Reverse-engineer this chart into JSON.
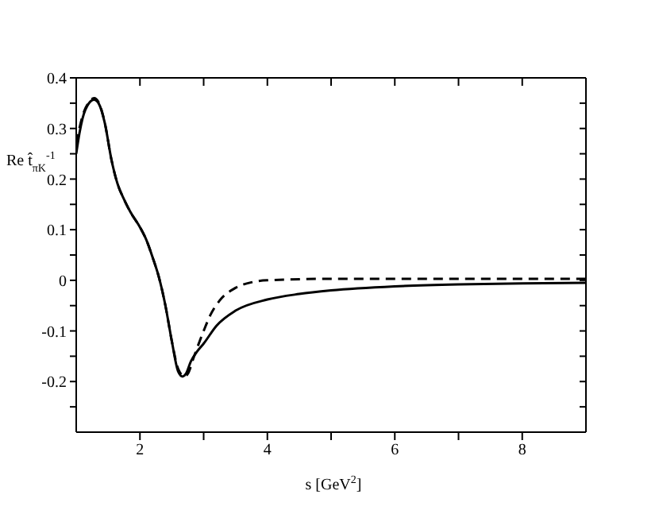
{
  "chart_data": {
    "type": "line",
    "xlabel": "s [GeV$^{2}$]",
    "ylabel": "Re t̂$_{πK}$$^{-1}$",
    "xlim": [
      1,
      9
    ],
    "ylim": [
      -0.3,
      0.4
    ],
    "xticks": [
      2,
      {
        "value": 3,
        "label": null
      },
      4,
      {
        "value": 5,
        "label": null
      },
      6,
      {
        "value": 7,
        "label": null
      },
      8
    ],
    "yticks": [
      {
        "value": -0.25,
        "label": null
      },
      -0.2,
      {
        "value": -0.15,
        "label": null
      },
      -0.1,
      {
        "value": -0.05,
        "label": null
      },
      0,
      {
        "value": 0.05,
        "label": null
      },
      0.1,
      {
        "value": 0.15,
        "label": null
      },
      0.2,
      {
        "value": 0.25,
        "label": null
      },
      0.3,
      {
        "value": 0.35,
        "label": null
      },
      0.4
    ],
    "legend": false,
    "marker": "none",
    "series": [
      {
        "color": "#000000",
        "line_style": "solid",
        "x": [
          1.0,
          1.05,
          1.1,
          1.2,
          1.28,
          1.35,
          1.45,
          1.55,
          1.65,
          1.75,
          1.85,
          2.0,
          2.1,
          2.2,
          2.3,
          2.4,
          2.5,
          2.6,
          2.67,
          2.72,
          2.8,
          2.9,
          3.0,
          3.2,
          3.5,
          4.0,
          4.5,
          5,
          6,
          7,
          8,
          9
        ],
        "values": [
          0.25,
          0.29,
          0.32,
          0.35,
          0.357,
          0.35,
          0.31,
          0.24,
          0.19,
          0.16,
          0.135,
          0.105,
          0.08,
          0.045,
          0.005,
          -0.05,
          -0.12,
          -0.18,
          -0.19,
          -0.185,
          -0.16,
          -0.14,
          -0.125,
          -0.09,
          -0.06,
          -0.038,
          -0.027,
          -0.02,
          -0.012,
          -0.008,
          -0.006,
          -0.005
        ]
      },
      {
        "color": "#000000",
        "line_style": "dashed",
        "x": [
          1.0,
          1.05,
          1.1,
          1.2,
          1.28,
          1.35,
          1.45,
          1.55,
          1.65,
          1.75,
          1.85,
          2.0,
          2.1,
          2.2,
          2.3,
          2.4,
          2.5,
          2.6,
          2.7,
          2.75,
          2.85,
          3.0,
          3.1,
          3.25,
          3.5,
          3.75,
          4,
          5,
          6,
          9
        ],
        "values": [
          0.27,
          0.3,
          0.325,
          0.352,
          0.36,
          0.352,
          0.31,
          0.24,
          0.19,
          0.16,
          0.135,
          0.105,
          0.08,
          0.045,
          0.005,
          -0.05,
          -0.12,
          -0.175,
          -0.19,
          -0.185,
          -0.15,
          -0.1,
          -0.07,
          -0.04,
          -0.015,
          -0.004,
          0,
          0.003,
          0.003,
          0.003
        ]
      }
    ]
  }
}
